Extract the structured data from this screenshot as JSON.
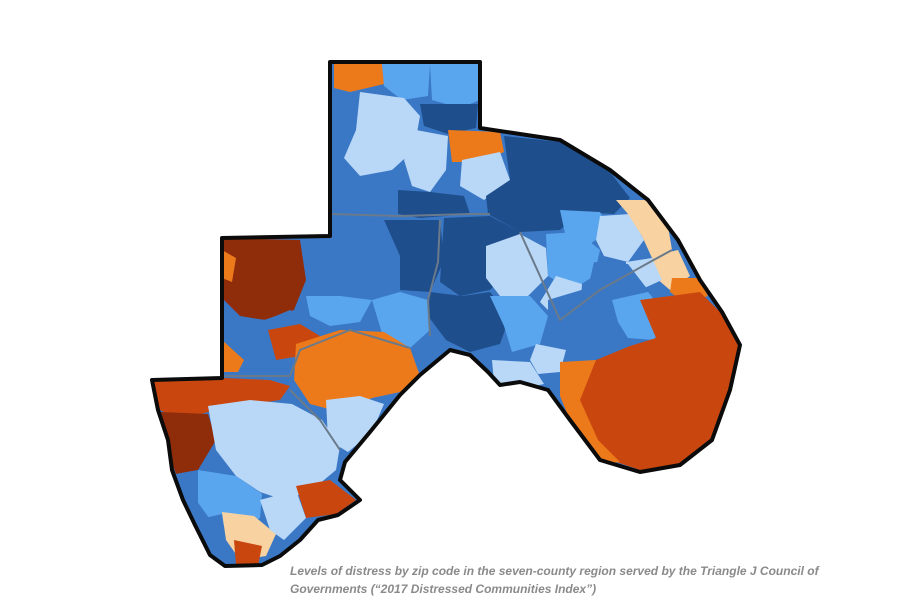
{
  "figure": {
    "caption": "Levels of distress by zip code in the seven-county region served by the Triangle J Council of Governments (“2017 Distressed Communities Index”)"
  },
  "map": {
    "subject": "Distressed Communities Index by zip code",
    "colors": {
      "prosperous": "#1f4e8c",
      "comfortable": "#3a78c6",
      "mid_tier": "#5aa6ee",
      "light": "#b9d7f7",
      "at_risk": "#f8d3a1",
      "distressed": "#ec7a1b",
      "severely_distressed": "#c9470f",
      "darkest": "#8f2c0a",
      "border": "#0b0b0b",
      "county_line": "#6a7a8a"
    }
  }
}
